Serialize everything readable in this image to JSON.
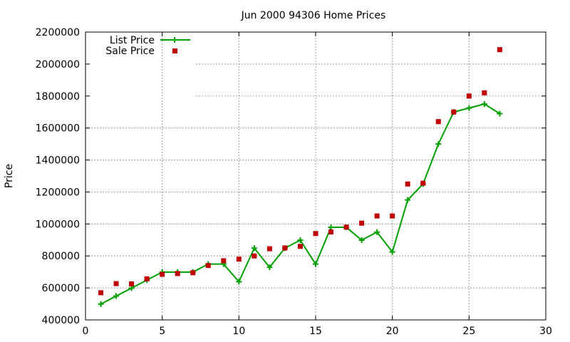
{
  "chart_data": {
    "type": "scatter",
    "title": "Jun 2000 94306 Home Prices",
    "xlabel": "",
    "ylabel": "Price",
    "xlim": [
      0,
      30
    ],
    "ylim": [
      400000,
      2200000
    ],
    "x_ticks": [
      "0",
      "5",
      "10",
      "15",
      "20",
      "25",
      "30"
    ],
    "y_ticks": [
      "400000",
      "600000",
      "800000",
      "1000000",
      "1200000",
      "1400000",
      "1600000",
      "1800000",
      "2000000",
      "2200000"
    ],
    "grid": true,
    "legend_position": "top-left",
    "series": [
      {
        "name": "List Price",
        "style": "linespoints",
        "color": "#00a000",
        "x": [
          1,
          2,
          3,
          4,
          5,
          6,
          7,
          8,
          9,
          10,
          11,
          12,
          13,
          14,
          15,
          16,
          17,
          18,
          19,
          20,
          21,
          22,
          23,
          24,
          25,
          26,
          27
        ],
        "values": [
          499000,
          549000,
          599000,
          649000,
          699000,
          699000,
          699000,
          749000,
          749000,
          639000,
          849000,
          729000,
          849000,
          899000,
          749000,
          979000,
          979000,
          899000,
          949000,
          825000,
          1150000,
          1250000,
          1500000,
          1700000,
          1725000,
          1750000,
          1690000
        ]
      },
      {
        "name": "Sale Price",
        "style": "points",
        "color": "#c00000",
        "x": [
          1,
          2,
          3,
          4,
          5,
          6,
          7,
          8,
          9,
          10,
          11,
          12,
          13,
          14,
          15,
          16,
          17,
          18,
          19,
          20,
          21,
          22,
          23,
          24,
          25,
          26,
          27
        ],
        "values": [
          570000,
          627000,
          625000,
          657000,
          685000,
          690000,
          695000,
          740000,
          770000,
          780000,
          800000,
          845000,
          850000,
          860000,
          940000,
          950000,
          980000,
          1005000,
          1050000,
          1050000,
          1250000,
          1255000,
          1640000,
          1700000,
          1800000,
          1820000,
          2090000
        ]
      }
    ]
  }
}
